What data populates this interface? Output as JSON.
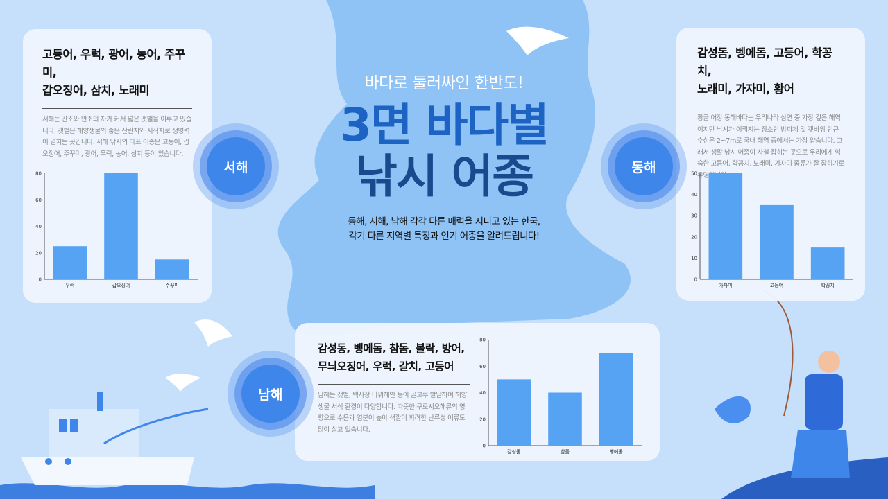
{
  "header": {
    "subtitle": "바다로 둘러싸인 한반도!",
    "title_line1": "3면 바다별",
    "title_line2": "낚시 어종",
    "description_line1": "동해, 서해, 남해 각각 다른 매력을 지니고 있는 한국,",
    "description_line2": "각기 다른 지역별 특징과 인기 어종을 알려드립니다!"
  },
  "colors": {
    "background": "#c6e0fb",
    "map": "#8fc3f5",
    "bar": "#57a3f3",
    "title_blue": "#1c63c4",
    "title_dark": "#1a4a8e",
    "badge": "#3f86ea"
  },
  "regions": {
    "west": {
      "badge": "서해",
      "title_line1": "고등어, 우럭, 광어, 농어, 주꾸미,",
      "title_line2": "갑오징어, 삼치, 노래미",
      "text": "서해는 간조와 만조의 차가 커서 넓은 갯벌을 이루고 있습니다. 갯벌은 해양생물의 좋은 산란지와 서식지로 생명력이 넘치는 곳입니다. 서해 낚시의 대표 어종은 고등어, 갑오징어, 주꾸미, 광어, 우럭, 농어, 삼치 등이 있습니다."
    },
    "east": {
      "badge": "동해",
      "title_line1": "감성돔, 벵에돔, 고등어, 학꽁치,",
      "title_line2": "노래미, 가자미, 황어",
      "text": "황금 어장 동해바다는 우리나라 삼면 중 가장 깊은 해역이지만 낚시가 이뤄지는 장소인 방파제 및 갯바위 인근 수심은 2~7m로 국내 해역 중에서는 가장 얕습니다. 그래서 생활 낚시 어종이 사철 잡히는 곳으로 우리에게 익숙한 고등어, 학꽁치, 노래미, 가자미 종류가 잘 잡히기로 유명합니다."
    },
    "south": {
      "badge": "남해",
      "title_line1": "감성동, 벵에돔, 참돔, 볼락, 방어,",
      "title_line2": "무늬오징어, 우럭, 갈치, 고등어",
      "text": "남해는 갯벌, 백사장 바위해안 등이 골고루 발달하여 해양생물 서식 환경이 다양합니다. 따뜻한 쿠로시오해류의 영향으로 수온과 염분이 높아 색깔이 화려한 난류성 어류도 많이 살고 있습니다."
    }
  },
  "chart_data": [
    {
      "type": "bar",
      "region": "west",
      "categories": [
        "우럭",
        "갑오징어",
        "주꾸미"
      ],
      "values": [
        25,
        80,
        15
      ],
      "ylim": [
        0,
        80
      ],
      "yticks": [
        "0",
        "20",
        "40",
        "60",
        "80"
      ],
      "grid": false
    },
    {
      "type": "bar",
      "region": "east",
      "categories": [
        "가자미",
        "고등어",
        "학꽁치"
      ],
      "values": [
        50,
        35,
        15
      ],
      "ylim": [
        0,
        50
      ],
      "yticks": [
        "0",
        "10",
        "20",
        "30",
        "40",
        "50"
      ],
      "grid": false
    },
    {
      "type": "bar",
      "region": "south",
      "categories": [
        "감성돔",
        "참돔",
        "벵에돔"
      ],
      "values": [
        50,
        40,
        70
      ],
      "ylim": [
        0,
        80
      ],
      "yticks": [
        "0",
        "20",
        "40",
        "60",
        "80"
      ],
      "grid": false
    }
  ]
}
